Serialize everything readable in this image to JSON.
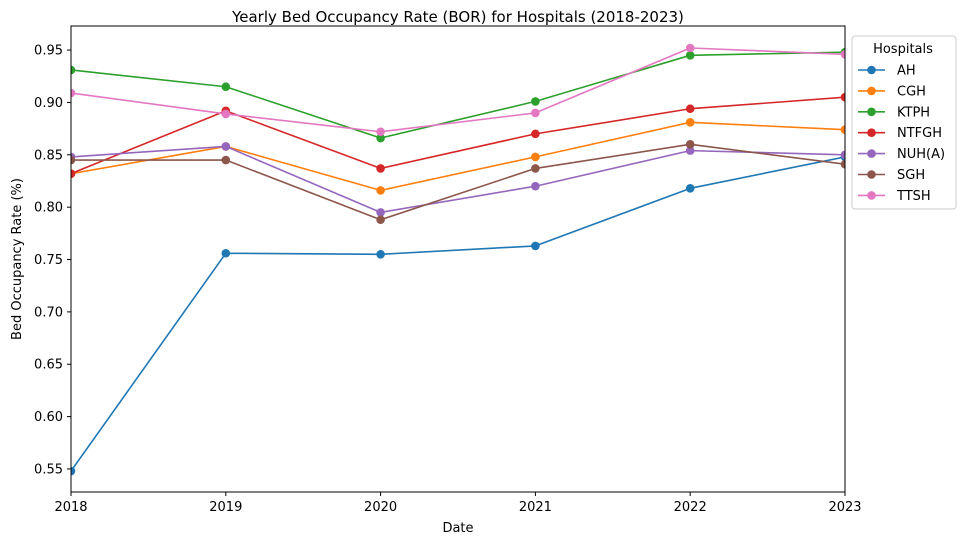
{
  "chart_data": {
    "type": "line",
    "title": "Yearly Bed Occupancy Rate (BOR) for Hospitals (2018-2023)",
    "xlabel": "Date",
    "ylabel": "Bed Occupancy Rate (%)",
    "categories": [
      "2018",
      "2019",
      "2020",
      "2021",
      "2022",
      "2023"
    ],
    "ylim": [
      0.528,
      0.973
    ],
    "yticks": [
      "0.55",
      "0.60",
      "0.65",
      "0.70",
      "0.75",
      "0.80",
      "0.85",
      "0.90",
      "0.95"
    ],
    "grid": false,
    "legend": {
      "title": "Hospitals",
      "placement": "outside-top-right"
    },
    "series": [
      {
        "name": "AH",
        "color": "#1f77b4",
        "values": [
          0.548,
          0.756,
          0.755,
          0.763,
          0.818,
          0.848
        ]
      },
      {
        "name": "CGH",
        "color": "#ff7f0e",
        "values": [
          0.832,
          0.858,
          0.816,
          0.848,
          0.881,
          0.874
        ]
      },
      {
        "name": "KTPH",
        "color": "#2ca02c",
        "values": [
          0.931,
          0.915,
          0.866,
          0.901,
          0.945,
          0.948
        ]
      },
      {
        "name": "NTFGH",
        "color": "#d62728",
        "values": [
          0.832,
          0.892,
          0.837,
          0.87,
          0.894,
          0.905
        ]
      },
      {
        "name": "NUH(A)",
        "color": "#9467bd",
        "values": [
          0.848,
          0.858,
          0.795,
          0.82,
          0.854,
          0.85
        ]
      },
      {
        "name": "SGH",
        "color": "#8c564b",
        "values": [
          0.845,
          0.845,
          0.788,
          0.837,
          0.86,
          0.841
        ]
      },
      {
        "name": "TTSH",
        "color": "#e377c2",
        "values": [
          0.909,
          0.889,
          0.872,
          0.89,
          0.952,
          0.946
        ]
      }
    ]
  }
}
